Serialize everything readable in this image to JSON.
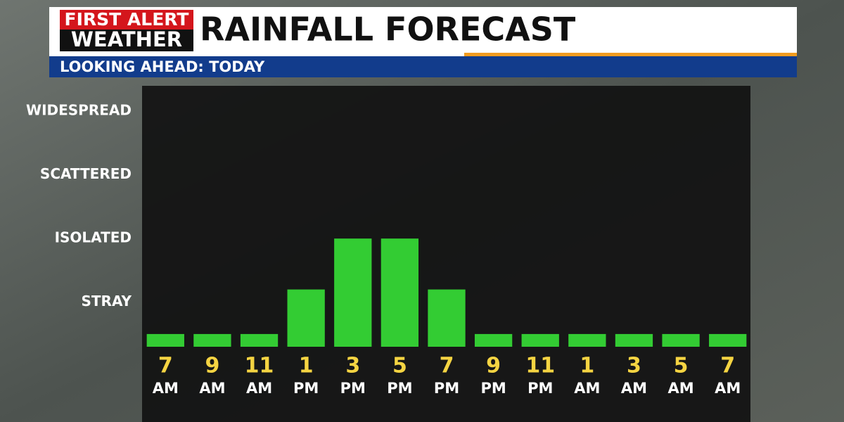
{
  "chart_data": {
    "type": "bar",
    "logo": [
      "FIRST ALERT",
      "WEATHER"
    ],
    "title": "RAINFALL FORECAST",
    "subtitle": "LOOKING AHEAD: TODAY",
    "categories": [
      [
        "7",
        "AM"
      ],
      [
        "9",
        "AM"
      ],
      [
        "11",
        "AM"
      ],
      [
        "1",
        "PM"
      ],
      [
        "3",
        "PM"
      ],
      [
        "5",
        "PM"
      ],
      [
        "7",
        "PM"
      ],
      [
        "9",
        "PM"
      ],
      [
        "11",
        "PM"
      ],
      [
        "1",
        "AM"
      ],
      [
        "3",
        "AM"
      ],
      [
        "5",
        "AM"
      ],
      [
        "7",
        "AM"
      ]
    ],
    "values": [
      0.5,
      0.5,
      0.5,
      1.2,
      2.0,
      2.0,
      1.2,
      0.5,
      0.5,
      0.5,
      0.5,
      0.5,
      0.5
    ],
    "color": "#33cc33",
    "ylim": [
      0.3,
      4.4
    ],
    "yticks": [
      {
        "value": 1,
        "label": "STRAY"
      },
      {
        "value": 2,
        "label": "ISOLATED"
      },
      {
        "value": 3,
        "label": "SCATTERED"
      },
      {
        "value": 4,
        "label": "WIDESPREAD"
      }
    ],
    "grid": false
  }
}
